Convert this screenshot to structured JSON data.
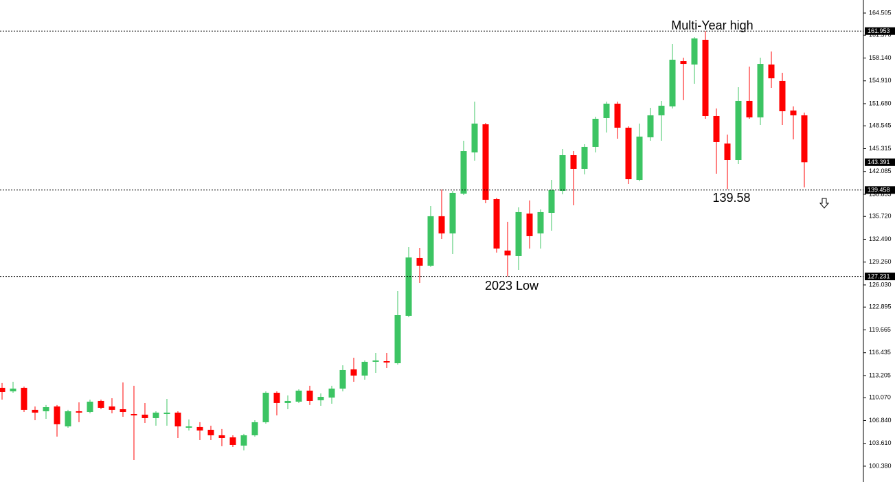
{
  "chart_data": {
    "type": "candlestick",
    "ylim": [
      98.14,
      166.35
    ],
    "yticks": [
      164.505,
      {
        "value": 161.37,
        "label": "161.370"
      },
      {
        "value": 158.14,
        "label": "158.140"
      },
      {
        "value": 154.91,
        "label": "154.910"
      },
      {
        "value": 151.68,
        "label": "151.680"
      },
      148.545,
      145.315,
      142.085,
      138.855,
      {
        "value": 135.72,
        "label": "135.720"
      },
      {
        "value": 132.49,
        "label": "132.490"
      },
      {
        "value": 129.26,
        "label": "129.260"
      },
      {
        "value": 126.03,
        "label": "126.030"
      },
      122.895,
      119.665,
      116.435,
      113.205,
      {
        "value": 110.07,
        "label": "110.070"
      },
      {
        "value": 106.84,
        "label": "106.840"
      },
      {
        "value": 103.61,
        "label": "103.610"
      },
      {
        "value": 100.38,
        "label": "100.380"
      }
    ],
    "up_color": "#3cc463",
    "down_color": "#ff0000",
    "open": [
      111.46,
      110.97,
      111.46,
      108.35,
      108.15,
      108.83,
      106.01,
      108.15,
      108.05,
      109.61,
      108.83,
      108.44,
      107.76,
      107.67,
      107.18,
      107.76,
      107.96,
      105.82,
      105.92,
      105.53,
      104.75,
      104.46,
      103.29,
      104.75,
      106.6,
      110.77,
      109.32,
      109.51,
      111.07,
      109.71,
      110.09,
      111.36,
      114.08,
      113.2,
      115.15,
      115.24,
      114.95,
      121.66,
      129.82,
      128.75,
      135.75,
      133.32,
      138.95,
      144.78,
      148.76,
      138.17,
      130.89,
      130.11,
      136.13,
      133.32,
      136.23,
      139.34,
      144.39,
      142.45,
      145.56,
      149.64,
      151.68,
      148.28,
      140.89,
      146.92,
      150.03,
      151.29,
      157.7,
      157.22,
      160.72,
      149.93,
      146.04,
      143.71,
      152.07,
      149.74,
      157.22,
      154.89,
      150.71,
      150.03
    ],
    "high": [
      112.14,
      112.33,
      111.65,
      108.83,
      109.03,
      109.03,
      108.35,
      109.41,
      109.8,
      109.8,
      110.0,
      112.23,
      111.75,
      109.32,
      108.15,
      109.9,
      108.15,
      106.99,
      106.6,
      106.11,
      105.63,
      104.75,
      104.95,
      106.89,
      110.97,
      110.97,
      110.39,
      111.26,
      111.75,
      110.68,
      111.75,
      114.66,
      115.73,
      115.34,
      116.41,
      116.41,
      125.15,
      131.37,
      131.27,
      137.2,
      139.53,
      139.34,
      146.43,
      151.97,
      148.96,
      138.37,
      134.97,
      137.01,
      137.98,
      136.72,
      140.89,
      145.27,
      144.97,
      145.95,
      149.83,
      151.97,
      151.97,
      148.47,
      148.86,
      151.1,
      152.07,
      160.13,
      158.19,
      161.1,
      161.95,
      151.0,
      147.31,
      154.01,
      156.93,
      158.19,
      159.06,
      156.05,
      151.29,
      150.42
    ],
    "low": [
      109.8,
      110.77,
      108.05,
      106.89,
      107.08,
      104.56,
      105.82,
      106.6,
      107.86,
      108.44,
      107.86,
      107.37,
      101.25,
      106.5,
      106.11,
      106.11,
      104.36,
      105.43,
      104.07,
      104.07,
      103.2,
      103.1,
      102.61,
      104.56,
      106.4,
      107.57,
      108.44,
      109.32,
      109.03,
      108.93,
      109.22,
      110.97,
      112.33,
      112.62,
      113.59,
      114.27,
      114.76,
      121.46,
      126.32,
      128.56,
      132.54,
      130.4,
      138.76,
      143.61,
      137.59,
      130.6,
      127.23,
      128.17,
      131.18,
      131.18,
      133.7,
      138.85,
      137.3,
      141.67,
      144.78,
      147.6,
      146.72,
      140.31,
      140.7,
      146.43,
      146.43,
      151.0,
      152.17,
      154.5,
      149.54,
      141.77,
      139.58,
      143.13,
      149.54,
      148.67,
      153.91,
      148.67,
      146.63,
      139.83
    ],
    "close": [
      110.87,
      111.36,
      108.35,
      107.96,
      108.73,
      106.31,
      108.15,
      107.96,
      109.51,
      108.64,
      108.35,
      108.05,
      107.57,
      107.18,
      107.96,
      107.96,
      106.01,
      106.01,
      105.43,
      104.75,
      104.36,
      103.39,
      104.75,
      106.6,
      110.77,
      109.32,
      109.61,
      111.07,
      109.61,
      110.19,
      111.36,
      113.98,
      113.2,
      115.15,
      115.34,
      115.05,
      121.75,
      129.92,
      128.75,
      135.75,
      133.32,
      139.05,
      144.97,
      148.86,
      138.08,
      131.18,
      130.21,
      136.33,
      132.93,
      136.33,
      139.44,
      144.39,
      142.45,
      145.56,
      149.54,
      151.68,
      148.28,
      140.99,
      147.02,
      150.03,
      151.39,
      157.9,
      157.31,
      160.91,
      149.93,
      146.24,
      143.71,
      152.07,
      149.74,
      157.31,
      155.27,
      150.61,
      150.03,
      143.39
    ],
    "levels": [
      161.953,
      139.458,
      127.231
    ],
    "current_price": 143.391,
    "annotations": [
      "Multi-Year high",
      "2023 Low",
      "139.58"
    ]
  }
}
